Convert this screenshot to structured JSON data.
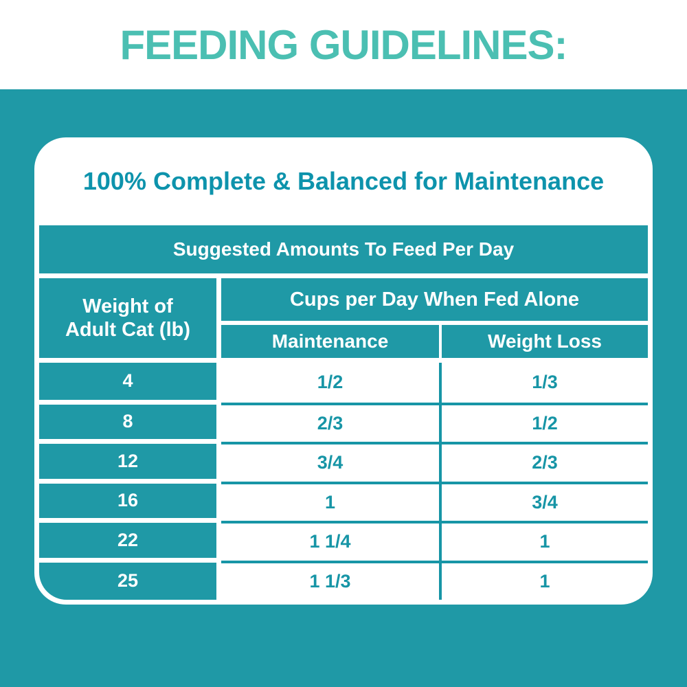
{
  "page": {
    "title": "FEEDING GUIDELINES:",
    "colors": {
      "background_teal": "#1F99A6",
      "title_mint": "#4BBFB2",
      "heading_text": "#0D93AC",
      "cell_text": "#1795A6",
      "white": "#FFFFFF"
    }
  },
  "card": {
    "heading": "100% Complete & Balanced for Maintenance",
    "table": {
      "banner": "Suggested Amounts To Feed Per Day",
      "weight_header_line1": "Weight of",
      "weight_header_line2": "Adult Cat (lb)",
      "group_header": "Cups per Day When Fed Alone",
      "col_headers": {
        "maintenance": "Maintenance",
        "weight_loss": "Weight Loss"
      },
      "rows": [
        {
          "weight": "4",
          "maintenance": "1/2",
          "weight_loss": "1/3"
        },
        {
          "weight": "8",
          "maintenance": "2/3",
          "weight_loss": "1/2"
        },
        {
          "weight": "12",
          "maintenance": "3/4",
          "weight_loss": "2/3"
        },
        {
          "weight": "16",
          "maintenance": "1",
          "weight_loss": "3/4"
        },
        {
          "weight": "22",
          "maintenance": "1 1/4",
          "weight_loss": "1"
        },
        {
          "weight": "25",
          "maintenance": "1 1/3",
          "weight_loss": "1"
        }
      ]
    }
  }
}
